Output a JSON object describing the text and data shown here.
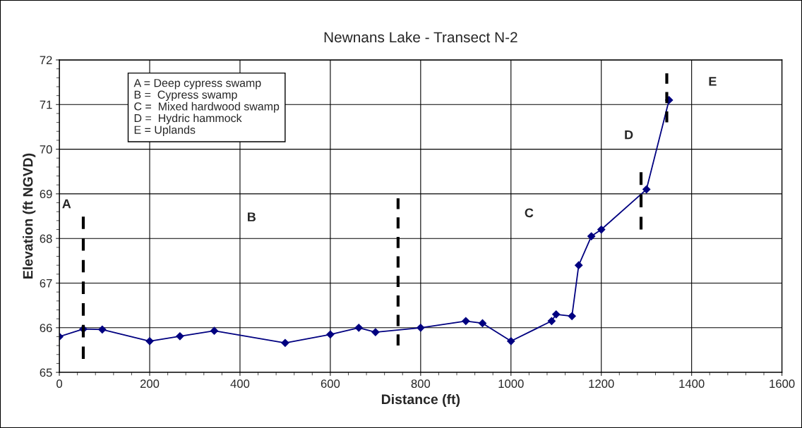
{
  "chart_data": {
    "type": "line",
    "title": "Newnans Lake - Transect N-2",
    "xlabel": "Distance (ft)",
    "ylabel": "Elevation (ft NGVD)",
    "series": [
      {
        "color": "#000080",
        "marker": "diamond",
        "line_style": "solid",
        "x": [
          0,
          53,
          95,
          200,
          267,
          343,
          500,
          600,
          663,
          700,
          800,
          900,
          937,
          1000,
          1090,
          1100,
          1135,
          1150,
          1178,
          1200,
          1300,
          1350
        ],
        "values": [
          65.8,
          65.97,
          65.96,
          65.7,
          65.81,
          65.93,
          65.66,
          65.85,
          66.0,
          65.9,
          66.0,
          66.15,
          66.1,
          65.7,
          66.15,
          66.3,
          66.26,
          67.4,
          68.05,
          68.2,
          69.1,
          71.1
        ]
      },
      {
        "color": "#000000",
        "marker": "none",
        "line_style": "dashed",
        "x": [
          53,
          53
        ],
        "values": [
          65.3,
          68.5
        ]
      },
      {
        "color": "#000000",
        "marker": "none",
        "line_style": "dashed",
        "x": [
          750,
          750
        ],
        "values": [
          65.6,
          68.9
        ]
      },
      {
        "color": "#000000",
        "marker": "none",
        "line_style": "dashed",
        "x": [
          1288,
          1288
        ],
        "values": [
          68.2,
          69.5
        ]
      },
      {
        "color": "#000000",
        "marker": "none",
        "line_style": "dashed",
        "x": [
          1345,
          1345
        ],
        "values": [
          70.6,
          71.7
        ]
      }
    ],
    "xlim": [
      0,
      1600
    ],
    "xticks": [
      0,
      200,
      400,
      600,
      800,
      1000,
      1200,
      1400,
      1600
    ],
    "ylim": [
      65,
      72
    ],
    "yticks": [
      65,
      66,
      67,
      68,
      69,
      70,
      71,
      72
    ],
    "grid": true,
    "annotations": [
      "A = Deep cypress swamp\nB =  Cypress swamp\nC =  Mixed hardwood swamp\nD =  Hydric hammock\nE = Uplands",
      "A",
      "B",
      "C",
      "D",
      "E"
    ]
  }
}
